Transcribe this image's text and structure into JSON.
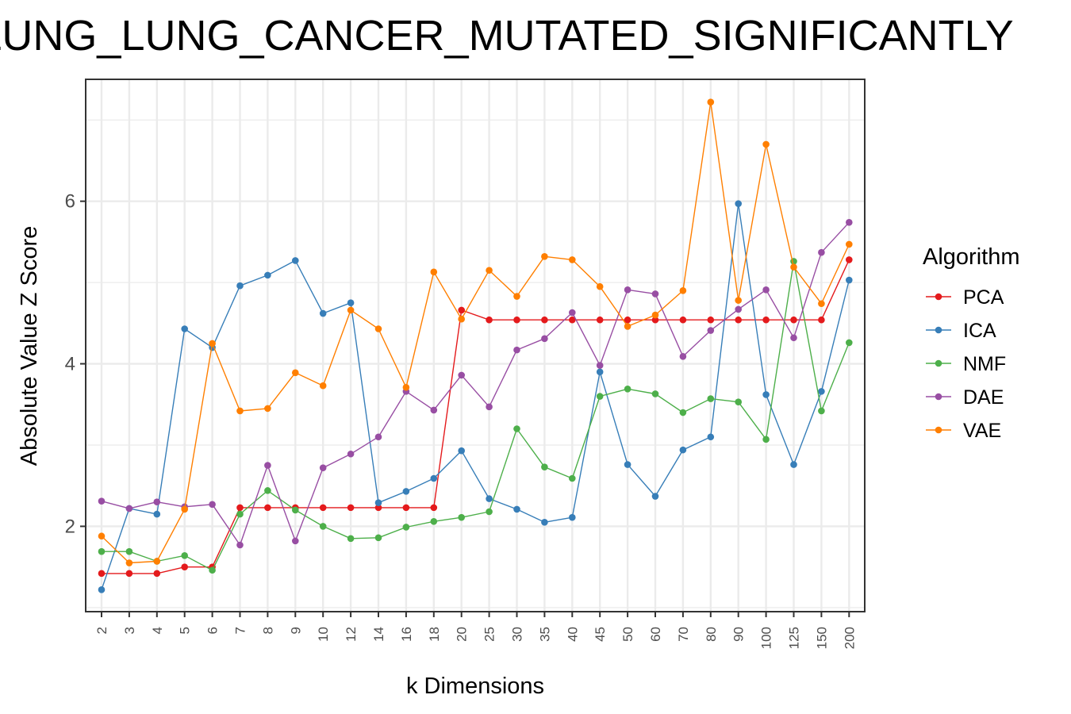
{
  "chart_data": {
    "type": "line",
    "title": "LUNG_LUNG_CANCER_MUTATED_SIGNIFICANTLY",
    "xlabel": "k Dimensions",
    "ylabel": "Absolute Value Z Score",
    "ylim": [
      0.95,
      7.5
    ],
    "yticks": [
      2,
      4,
      6
    ],
    "grid": true,
    "legend": {
      "title": "Algorithm",
      "position": "right"
    },
    "categories": [
      "2",
      "3",
      "4",
      "5",
      "6",
      "7",
      "8",
      "9",
      "10",
      "12",
      "14",
      "16",
      "18",
      "20",
      "25",
      "30",
      "35",
      "40",
      "45",
      "50",
      "60",
      "70",
      "80",
      "90",
      "100",
      "125",
      "150",
      "200"
    ],
    "series": [
      {
        "name": "PCA",
        "color": "#e41a1c",
        "values": [
          1.42,
          1.42,
          1.42,
          1.5,
          1.5,
          2.23,
          2.23,
          2.23,
          2.23,
          2.23,
          2.23,
          2.23,
          2.23,
          4.66,
          4.54,
          4.54,
          4.54,
          4.54,
          4.54,
          4.54,
          4.54,
          4.54,
          4.54,
          4.54,
          4.54,
          4.54,
          4.54,
          5.28
        ]
      },
      {
        "name": "ICA",
        "color": "#377eb8",
        "values": [
          1.22,
          2.22,
          2.15,
          4.43,
          4.2,
          4.96,
          5.09,
          5.27,
          4.62,
          4.75,
          2.29,
          2.43,
          2.59,
          2.93,
          2.34,
          2.21,
          2.05,
          2.11,
          3.9,
          2.76,
          2.37,
          2.94,
          3.1,
          5.97,
          3.62,
          2.76,
          3.66,
          5.03
        ]
      },
      {
        "name": "NMF",
        "color": "#4daf4a",
        "values": [
          1.69,
          1.69,
          1.57,
          1.64,
          1.46,
          2.15,
          2.44,
          2.2,
          2.0,
          1.85,
          1.86,
          1.99,
          2.06,
          2.11,
          2.18,
          3.2,
          2.73,
          2.59,
          3.6,
          3.69,
          3.63,
          3.4,
          3.57,
          3.53,
          3.07,
          5.26,
          3.42,
          4.26
        ]
      },
      {
        "name": "DAE",
        "color": "#984ea3",
        "values": [
          2.31,
          2.22,
          2.3,
          2.24,
          2.27,
          1.77,
          2.75,
          1.82,
          2.72,
          2.89,
          3.1,
          3.66,
          3.43,
          3.86,
          3.47,
          4.17,
          4.31,
          4.63,
          3.98,
          4.91,
          4.86,
          4.09,
          4.41,
          4.67,
          4.91,
          4.32,
          5.37,
          5.74
        ]
      },
      {
        "name": "VAE",
        "color": "#ff7f00",
        "values": [
          1.88,
          1.55,
          1.57,
          2.21,
          4.25,
          3.42,
          3.45,
          3.89,
          3.73,
          4.66,
          4.43,
          3.71,
          5.13,
          4.55,
          5.15,
          4.83,
          5.32,
          5.28,
          4.95,
          4.46,
          4.6,
          4.9,
          7.22,
          4.78,
          6.7,
          5.19,
          4.74,
          5.47
        ]
      }
    ]
  }
}
